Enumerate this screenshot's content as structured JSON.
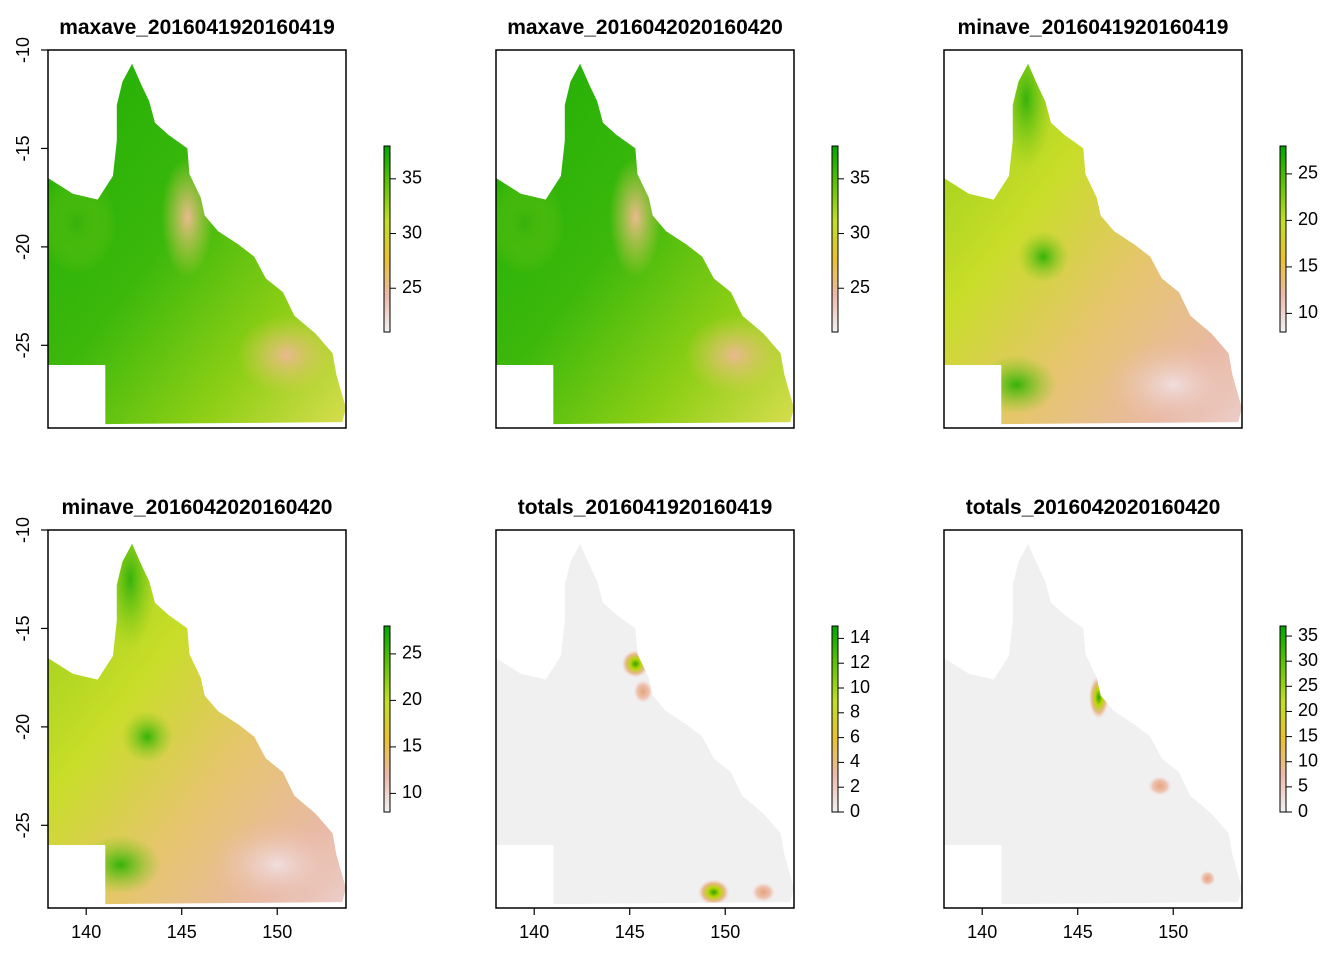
{
  "chart_data": [
    {
      "type": "heatmap",
      "title": "maxave_2016041920160419",
      "y_ticks": [
        "-10",
        "-15",
        "-20",
        "-25"
      ],
      "x_ticks": [],
      "legend_ticks": [
        "35",
        "30",
        "25"
      ],
      "legend_range": [
        21,
        38
      ],
      "palette": "terrain",
      "pattern": "max"
    },
    {
      "type": "heatmap",
      "title": "maxave_2016042020160420",
      "y_ticks": [],
      "x_ticks": [],
      "legend_ticks": [
        "35",
        "30",
        "25"
      ],
      "legend_range": [
        21,
        38
      ],
      "palette": "terrain",
      "pattern": "max"
    },
    {
      "type": "heatmap",
      "title": "minave_2016041920160419",
      "y_ticks": [],
      "x_ticks": [],
      "legend_ticks": [
        "25",
        "20",
        "15",
        "10"
      ],
      "legend_range": [
        8,
        28
      ],
      "palette": "terrain",
      "pattern": "min"
    },
    {
      "type": "heatmap",
      "title": "minave_2016042020160420",
      "y_ticks": [
        "-10",
        "-15",
        "-20",
        "-25"
      ],
      "x_ticks": [
        "140",
        "145",
        "150"
      ],
      "legend_ticks": [
        "25",
        "20",
        "15",
        "10"
      ],
      "legend_range": [
        8,
        28
      ],
      "palette": "terrain",
      "pattern": "min"
    },
    {
      "type": "heatmap",
      "title": "totals_2016041920160419",
      "y_ticks": [],
      "x_ticks": [
        "140",
        "145",
        "150"
      ],
      "legend_ticks": [
        "14",
        "12",
        "10",
        "8",
        "6",
        "4",
        "2",
        "0"
      ],
      "legend_range": [
        0,
        15
      ],
      "palette": "terrain",
      "pattern": "totals"
    },
    {
      "type": "heatmap",
      "title": "totals_2016042020160420",
      "y_ticks": [],
      "x_ticks": [
        "140",
        "145",
        "150"
      ],
      "legend_ticks": [
        "35",
        "30",
        "25",
        "20",
        "15",
        "10",
        "5",
        "0"
      ],
      "legend_range": [
        0,
        37
      ],
      "palette": "terrain",
      "pattern": "totals"
    }
  ]
}
